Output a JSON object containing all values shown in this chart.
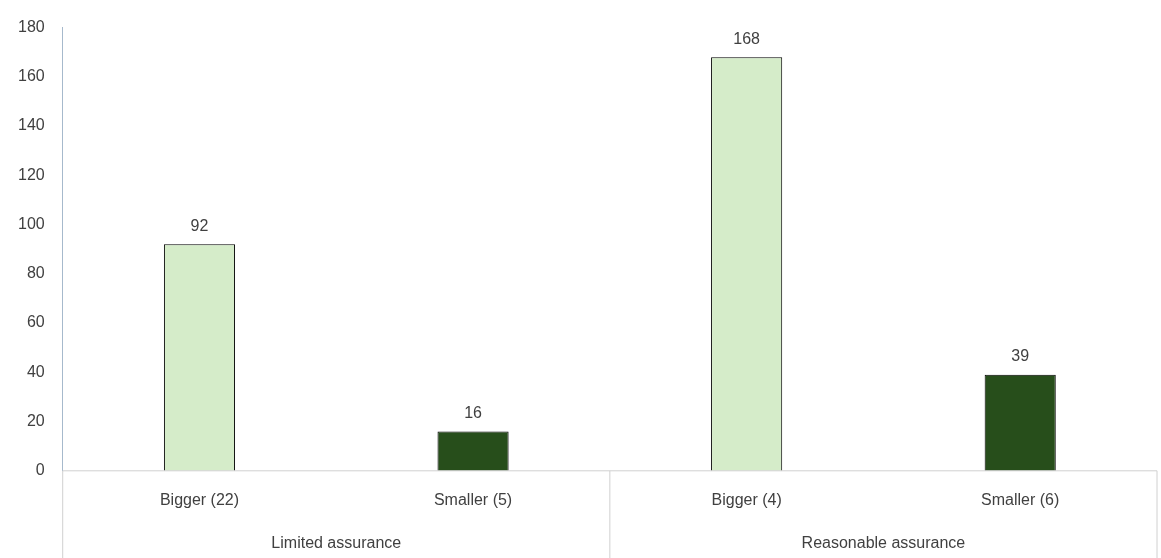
{
  "chart_data": {
    "type": "bar",
    "categories": [
      "Bigger (22)",
      "Smaller (5)",
      "Bigger (4)",
      "Smaller (6)"
    ],
    "values": [
      92,
      16,
      168,
      39
    ],
    "colors": [
      "#d5ecc9",
      "#274e1b",
      "#d5ecc9",
      "#274e1b"
    ],
    "ylim": [
      0,
      180
    ],
    "yticks": [
      0,
      20,
      40,
      60,
      80,
      100,
      120,
      140,
      160,
      180
    ],
    "grid": false,
    "legend": false,
    "data_labels": true,
    "annotations": [
      "Limited assurance",
      "Reasonable assurance"
    ]
  }
}
